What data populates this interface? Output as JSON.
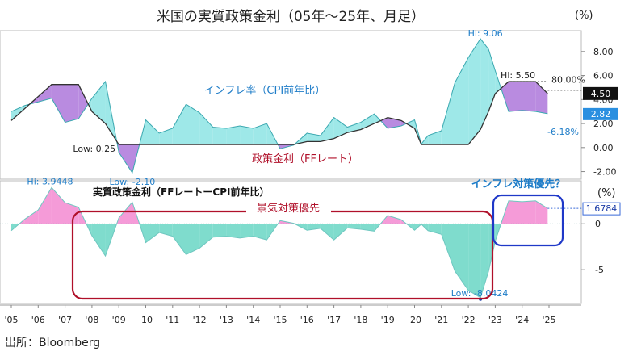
{
  "title": "米国の実質政策金利（05年～25年、月足）",
  "source": "出所：Bloomberg",
  "colors": {
    "inflation_fill": "#9ee8e8",
    "inflation_line": "#3aa8b0",
    "policy_line": "#333333",
    "purple_fill": "#b98be0",
    "pink_fill": "#f59bd8",
    "teal_fill": "#7fdccd",
    "red_box": "#b0102a",
    "blue_box": "#1f38c8",
    "label_blue": "#1f7dc8",
    "label_red": "#b0102a"
  },
  "chart_data": [
    {
      "type": "area",
      "title": "インフレ率（CPI前年比） vs 政策金利（FFレート）",
      "unit_label": "(%)",
      "yticks": [
        "8.00",
        "6.00",
        "4.00",
        "2.00",
        "0.00",
        "-2.00"
      ],
      "ylim": [
        -2.5,
        9.6
      ],
      "x": [
        2005.0,
        2005.5,
        2006.0,
        2006.5,
        2007.0,
        2007.5,
        2008.0,
        2008.5,
        2009.0,
        2009.5,
        2010.0,
        2010.5,
        2011.0,
        2011.5,
        2012.0,
        2012.5,
        2013.0,
        2013.5,
        2014.0,
        2014.5,
        2015.0,
        2015.5,
        2016.0,
        2016.5,
        2017.0,
        2017.5,
        2018.0,
        2018.5,
        2019.0,
        2019.5,
        2020.0,
        2020.25,
        2020.5,
        2021.0,
        2021.5,
        2022.0,
        2022.45,
        2022.75,
        2023.0,
        2023.5,
        2024.0,
        2024.5,
        2024.95
      ],
      "series": [
        {
          "name": "インフレ率（CPI前年比）",
          "values": [
            3.0,
            3.5,
            3.8,
            4.1,
            2.1,
            2.4,
            4.1,
            5.5,
            -0.4,
            -2.1,
            2.3,
            1.2,
            1.6,
            3.6,
            2.9,
            1.7,
            1.6,
            1.8,
            1.6,
            2.0,
            -0.1,
            0.2,
            1.2,
            1.0,
            2.5,
            1.7,
            2.1,
            2.8,
            1.6,
            1.8,
            2.3,
            0.3,
            1.0,
            1.4,
            5.4,
            7.5,
            9.06,
            8.2,
            6.4,
            3.0,
            3.1,
            3.0,
            2.82
          ]
        },
        {
          "name": "政策金利（FFレート）",
          "values": [
            2.25,
            3.25,
            4.25,
            5.25,
            5.25,
            5.25,
            3.0,
            2.0,
            0.25,
            0.25,
            0.25,
            0.25,
            0.25,
            0.25,
            0.25,
            0.25,
            0.25,
            0.25,
            0.25,
            0.25,
            0.25,
            0.25,
            0.5,
            0.5,
            0.75,
            1.25,
            1.5,
            2.0,
            2.5,
            2.25,
            1.6,
            0.25,
            0.25,
            0.25,
            0.25,
            0.25,
            1.5,
            3.0,
            4.5,
            5.5,
            5.5,
            5.5,
            4.5
          ]
        }
      ],
      "annotations": [
        {
          "label": "Hi: 9.06"
        },
        {
          "label": "Hi: 5.50"
        },
        {
          "label": "Low: 0.25"
        },
        {
          "label": "Low: -2.10"
        },
        {
          "label": "80.00%"
        },
        {
          "label": "-6.18%"
        },
        {
          "label": "インフレ率（CPI前年比）"
        },
        {
          "label": "政策金利（FFレート）"
        }
      ],
      "last_values": {
        "policy": "4.50",
        "inflation": "2.82"
      }
    },
    {
      "type": "area",
      "title": "実質政策金利（FFレートーCPI前年比）",
      "unit_label": "(%)",
      "yticks": [
        "0",
        "-5"
      ],
      "ylim": [
        -8.5,
        4.5
      ],
      "x": [
        2005.0,
        2005.5,
        2006.0,
        2006.5,
        2007.0,
        2007.5,
        2008.0,
        2008.5,
        2009.0,
        2009.5,
        2010.0,
        2010.5,
        2011.0,
        2011.5,
        2012.0,
        2012.5,
        2013.0,
        2013.5,
        2014.0,
        2014.5,
        2015.0,
        2015.5,
        2016.0,
        2016.5,
        2017.0,
        2017.5,
        2018.0,
        2018.5,
        2019.0,
        2019.5,
        2020.0,
        2020.25,
        2020.5,
        2021.0,
        2021.5,
        2022.0,
        2022.45,
        2022.75,
        2023.0,
        2023.5,
        2024.0,
        2024.5,
        2024.95
      ],
      "series": [
        {
          "name": "実質政策金利",
          "values": [
            -0.75,
            0.5,
            1.5,
            3.9448,
            2.3,
            1.8,
            -1.3,
            -3.5,
            0.65,
            2.35,
            -2.05,
            -0.95,
            -1.35,
            -3.35,
            -2.65,
            -1.45,
            -1.35,
            -1.55,
            -1.35,
            -1.75,
            0.35,
            0.05,
            -0.7,
            -0.5,
            -1.75,
            -0.45,
            -0.6,
            -0.8,
            0.9,
            0.45,
            -0.7,
            -0.05,
            -0.75,
            -1.15,
            -5.15,
            -7.25,
            -8.0424,
            -5.2,
            -1.9,
            2.5,
            2.4,
            2.5,
            1.6784
          ]
        }
      ],
      "annotations": [
        {
          "label": "Hi: 3.9448"
        },
        {
          "label": "Low: -8.0424"
        },
        {
          "label": "景気対策優先"
        },
        {
          "label": "インフレ対策優先？"
        }
      ],
      "last_values": {
        "real_rate": "1.6784"
      }
    }
  ],
  "x_axis": {
    "tick_labels": [
      "'05",
      "'06",
      "'07",
      "'08",
      "'09",
      "'10",
      "'11",
      "'12",
      "'13",
      "'14",
      "'15",
      "'16",
      "'17",
      "'18",
      "'19",
      "'20",
      "'21",
      "'22",
      "'23",
      "'24",
      "'25"
    ]
  }
}
